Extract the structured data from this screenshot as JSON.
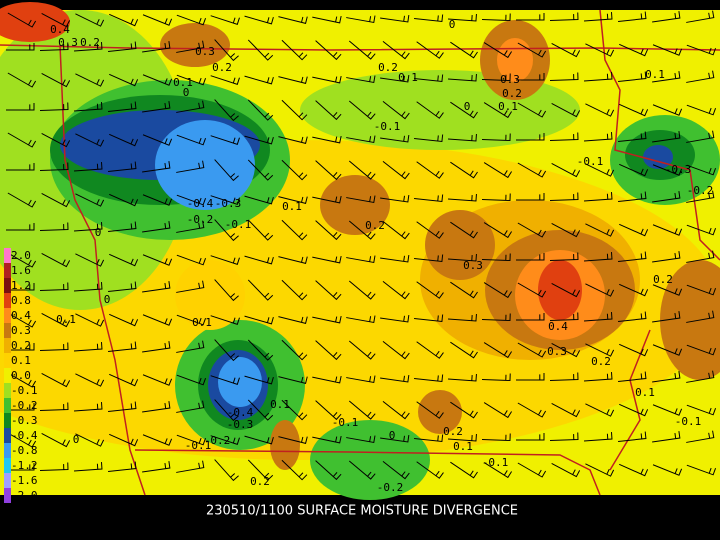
{
  "caption": "230510/1100 SURFACE MOISTURE DIVERGENCE",
  "legend": [
    {
      "label": "2.0",
      "color": "#ff77cc"
    },
    {
      "label": "1.6",
      "color": "#b02020"
    },
    {
      "label": "1.2",
      "color": "#7a1010"
    },
    {
      "label": "0.8",
      "color": "#e04010"
    },
    {
      "label": "0.4",
      "color": "#ff8c1a"
    },
    {
      "label": "0.3",
      "color": "#c87810"
    },
    {
      "label": "0.2",
      "color": "#f0b000"
    },
    {
      "label": "0.1",
      "color": "#ffd200"
    },
    {
      "label": "0.0",
      "color": "#f0f000"
    },
    {
      "label": "-0.1",
      "color": "#a0e020"
    },
    {
      "label": "-0.2",
      "color": "#40c030"
    },
    {
      "label": "-0.3",
      "color": "#108820"
    },
    {
      "label": "-0.4",
      "color": "#1a4aa0"
    },
    {
      "label": "-0.8",
      "color": "#3a9af0"
    },
    {
      "label": "-1.2",
      "color": "#20c8f0"
    },
    {
      "label": "-1.6",
      "color": "#a0a0ff"
    },
    {
      "label": "-2.0",
      "color": "#9040e0"
    }
  ],
  "contour_labels": [
    "0.4",
    "0.3",
    "0.2",
    "0",
    "0.3",
    "0.2",
    "0.2",
    "0.1",
    "0.3",
    "0.2",
    "0.1",
    "0",
    "0",
    "0.1",
    "0.1",
    "-0.1",
    "-0.1",
    "-0.3",
    "-0.2",
    "-0.4",
    "-0.3",
    "-0.2",
    "-0.1",
    "0.1",
    "0.2",
    "0",
    "0.3",
    "0.2",
    "0",
    "0.1",
    "0.1",
    "0.4",
    "0.3",
    "0.2",
    "0.1",
    "-0.1",
    "0.1",
    "-0.4",
    "-0.3",
    "-0.1",
    "0",
    "0.2",
    "0.1",
    "-0.2",
    "-0.1",
    "0",
    "-0.1",
    "0.2",
    "-0.2"
  ]
}
